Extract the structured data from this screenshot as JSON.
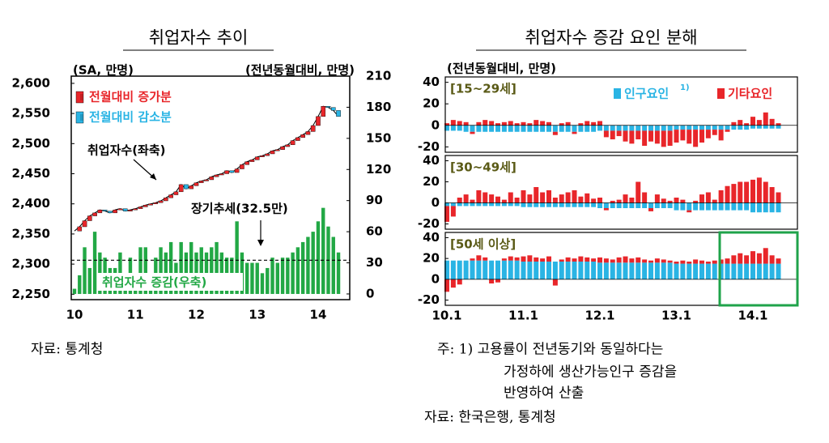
{
  "chart_data": [
    {
      "type": "combo",
      "title": "취업자수 추이",
      "y_label": "(SA, 만명)",
      "y2_label": "(전년동월대비, 만명)",
      "categories": [
        "10",
        null,
        null,
        null,
        null,
        null,
        null,
        null,
        null,
        null,
        null,
        null,
        "11",
        null,
        null,
        null,
        null,
        null,
        null,
        null,
        null,
        null,
        null,
        null,
        "12",
        null,
        null,
        null,
        null,
        null,
        null,
        null,
        null,
        null,
        null,
        null,
        "13",
        null,
        null,
        null,
        null,
        null,
        null,
        null,
        null,
        null,
        null,
        null,
        "14",
        null,
        null,
        null,
        null
      ],
      "ylim": [
        2241,
        2612
      ],
      "yticks": [
        {
          "value": 2250,
          "label": "2,250"
        },
        {
          "value": 2300,
          "label": "2,300"
        },
        {
          "value": 2350,
          "label": "2,350"
        },
        {
          "value": 2400,
          "label": "2,400"
        },
        {
          "value": 2450,
          "label": "2,450"
        },
        {
          "value": 2500,
          "label": "2,500"
        },
        {
          "value": 2550,
          "label": "2,550"
        },
        {
          "value": 2600,
          "label": "2,600"
        }
      ],
      "y2lim": [
        -5.5,
        210
      ],
      "y2ticks": [
        0,
        30,
        60,
        90,
        120,
        150,
        180,
        210
      ],
      "series": [
        {
          "name": "취업자수(좌축)",
          "type": "line",
          "color": "#000000",
          "values": [
            2355,
            2362,
            2372,
            2380,
            2385,
            2390,
            2388,
            2385,
            2390,
            2392,
            2388,
            2390,
            2392,
            2395,
            2398,
            2400,
            2402,
            2405,
            2410,
            2415,
            2420,
            2432,
            2425,
            2430,
            2435,
            2438,
            2440,
            2445,
            2448,
            2450,
            2455,
            2452,
            2458,
            2465,
            2470,
            2473,
            2478,
            2480,
            2483,
            2488,
            2490,
            2495,
            2498,
            2505,
            2510,
            2515,
            2520,
            2530,
            2545,
            2562,
            2560,
            2555,
            2545
          ]
        },
        {
          "name": "취업자수 증감(우축)",
          "type": "bar",
          "axis": "y2",
          "color": "#22a845",
          "values": [
            5,
            18,
            45,
            25,
            60,
            40,
            35,
            25,
            25,
            40,
            15,
            35,
            20,
            45,
            45,
            20,
            35,
            45,
            40,
            50,
            30,
            50,
            40,
            50,
            40,
            45,
            40,
            45,
            50,
            40,
            35,
            35,
            70,
            40,
            30,
            30,
            30,
            20,
            25,
            35,
            30,
            35,
            35,
            40,
            45,
            50,
            55,
            60,
            70,
            83,
            65,
            55,
            40
          ]
        }
      ],
      "legend": [
        {
          "name": "전월대비 증가분",
          "color": "#e8262a"
        },
        {
          "name": "전월대비 감소분",
          "color": "#2ab4e4"
        }
      ],
      "trend": {
        "label": "장기추세(32.5만)",
        "value": 32.5
      },
      "source": "자료: 통계청"
    },
    {
      "type": "stacked_bar_panels",
      "title": "취업자수 증감 요인 분해",
      "y_label": "(전년동월대비, 만명)",
      "categories": [
        "10.1",
        null,
        null,
        null,
        null,
        null,
        null,
        null,
        null,
        null,
        null,
        null,
        "11.1",
        null,
        null,
        null,
        null,
        null,
        null,
        null,
        null,
        null,
        null,
        null,
        "12.1",
        null,
        null,
        null,
        null,
        null,
        null,
        null,
        null,
        null,
        null,
        null,
        "13.1",
        null,
        null,
        null,
        null,
        null,
        null,
        null,
        null,
        null,
        null,
        null,
        "14.1",
        null,
        null,
        null,
        null
      ],
      "series": [
        {
          "name": "인구요인",
          "color": "#2ab4e4"
        },
        {
          "name": "기타요인",
          "color": "#e8262a"
        }
      ],
      "legend_note": "1)",
      "panels": [
        {
          "label": "[15~29세]",
          "ylim": [
            -25,
            45
          ],
          "yticks": [
            -20,
            0,
            20,
            40
          ],
          "series_values": [
            [
              -5,
              -5,
              -5,
              -6,
              -6,
              -6,
              -6,
              -6,
              -6,
              -6,
              -6,
              -6,
              -6,
              -6,
              -6,
              -6,
              -6,
              -6,
              -6,
              -6,
              -6,
              -6,
              -6,
              -6,
              -5,
              -5,
              -5,
              -5,
              -5,
              -5,
              -5,
              -5,
              -5,
              -5,
              -5,
              -5,
              -4,
              -4,
              -4,
              -4,
              -4,
              -4,
              -4,
              -4,
              -4,
              -4,
              -4,
              -4,
              -3,
              -3,
              -3,
              -3,
              -3
            ],
            [
              2,
              5,
              4,
              3,
              -2,
              3,
              5,
              4,
              2,
              3,
              4,
              2,
              3,
              2,
              5,
              4,
              3,
              -3,
              2,
              3,
              -2,
              2,
              4,
              3,
              4,
              -6,
              -8,
              -5,
              -10,
              -12,
              -8,
              -14,
              -10,
              -12,
              -15,
              -14,
              -12,
              -10,
              -13,
              -16,
              -12,
              -8,
              -5,
              -10,
              -2,
              3,
              5,
              2,
              8,
              5,
              12,
              6,
              2
            ]
          ]
        },
        {
          "label": "[30~49세]",
          "ylim": [
            -25,
            45
          ],
          "yticks": [
            -20,
            0,
            20,
            40
          ],
          "series_values": [
            [
              -3,
              -3,
              -3,
              -3,
              -3,
              -3,
              -3,
              -3,
              -3,
              -3,
              -3,
              -3,
              -4,
              -4,
              -4,
              -4,
              -4,
              -4,
              -4,
              -4,
              -4,
              -4,
              -4,
              -4,
              -5,
              -5,
              -5,
              -5,
              -5,
              -5,
              -5,
              -5,
              -5,
              -5,
              -5,
              -5,
              -7,
              -7,
              -7,
              -7,
              -7,
              -7,
              -7,
              -7,
              -7,
              -7,
              -7,
              -7,
              -9,
              -9,
              -9,
              -9,
              -9
            ],
            [
              -15,
              -10,
              5,
              8,
              3,
              12,
              10,
              8,
              6,
              3,
              10,
              5,
              12,
              8,
              15,
              10,
              12,
              5,
              8,
              10,
              12,
              6,
              9,
              4,
              5,
              -2,
              2,
              3,
              8,
              5,
              20,
              10,
              -3,
              8,
              4,
              2,
              5,
              3,
              -2,
              2,
              8,
              10,
              3,
              12,
              16,
              18,
              20,
              20,
              22,
              24,
              20,
              15,
              10
            ]
          ]
        },
        {
          "label": "[50세 이상]",
          "ylim": [
            -25,
            45
          ],
          "yticks": [
            -20,
            0,
            20,
            40
          ],
          "series_values": [
            [
              18,
              18,
              18,
              18,
              18,
              18,
              18,
              18,
              18,
              18,
              18,
              18,
              17,
              17,
              17,
              17,
              17,
              17,
              17,
              17,
              17,
              17,
              17,
              17,
              16,
              16,
              16,
              16,
              16,
              16,
              16,
              16,
              16,
              16,
              16,
              16,
              15,
              15,
              15,
              15,
              15,
              15,
              15,
              15,
              15,
              15,
              15,
              15,
              15,
              15,
              15,
              15,
              15
            ],
            [
              -12,
              -8,
              -5,
              0,
              2,
              5,
              3,
              -4,
              -3,
              2,
              4,
              3,
              5,
              6,
              4,
              3,
              5,
              -6,
              2,
              4,
              3,
              5,
              4,
              3,
              5,
              4,
              3,
              5,
              6,
              4,
              5,
              3,
              2,
              4,
              3,
              2,
              2,
              3,
              2,
              4,
              3,
              2,
              3,
              4,
              5,
              8,
              10,
              8,
              12,
              10,
              15,
              8,
              5
            ]
          ]
        }
      ],
      "notes": [
        "주: 1) 고용률이 전년동기와 동일하다는",
        "가정하에 생산가능인구 증감을",
        "반영하여 산출"
      ],
      "source": "자료: 한국은행, 통계청"
    }
  ]
}
